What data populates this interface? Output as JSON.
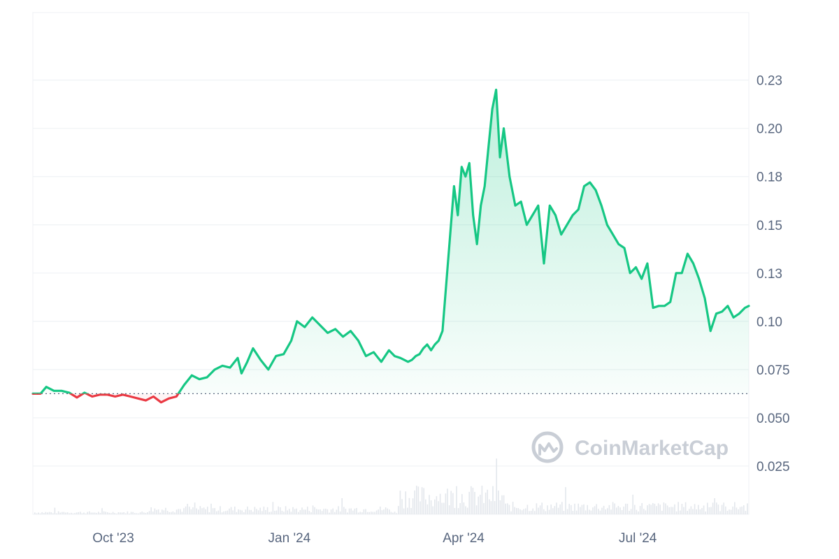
{
  "watermark": {
    "text": "CoinMarketCap",
    "icon": "coinmarketcap-logo-icon",
    "color": "#c9ced6"
  },
  "colors": {
    "up": "#16c784",
    "down": "#ea3943",
    "grid": "#eff2f5",
    "axis_text": "#58667e",
    "baseline": "#58667e",
    "volume": "#e3e7ec"
  },
  "chart_data": {
    "type": "line",
    "title": "",
    "xlabel": "",
    "ylabel": "",
    "xlim": [
      "2023-08-20",
      "2024-08-28"
    ],
    "ylim": [
      0,
      0.26
    ],
    "baseline": 0.0625,
    "y_ticks": [
      {
        "value": 0.025,
        "label": "0.025"
      },
      {
        "value": 0.05,
        "label": "0.050"
      },
      {
        "value": 0.075,
        "label": "0.075"
      },
      {
        "value": 0.1,
        "label": "0.10"
      },
      {
        "value": 0.125,
        "label": "0.13"
      },
      {
        "value": 0.15,
        "label": "0.15"
      },
      {
        "value": 0.175,
        "label": "0.18"
      },
      {
        "value": 0.2,
        "label": "0.20"
      },
      {
        "value": 0.225,
        "label": "0.23"
      }
    ],
    "x_ticks": [
      {
        "date": "2023-10-01",
        "label": "Oct '23"
      },
      {
        "date": "2024-01-01",
        "label": "Jan '24"
      },
      {
        "date": "2024-04-01",
        "label": "Apr '24"
      },
      {
        "date": "2024-07-01",
        "label": "Jul '24"
      }
    ],
    "grid": true,
    "legend": "none",
    "series": [
      {
        "x": [
          "2023-08-20",
          "2023-08-24",
          "2023-08-27",
          "2023-08-31",
          "2023-09-04",
          "2023-09-08",
          "2023-09-12",
          "2023-09-16",
          "2023-09-20",
          "2023-09-24",
          "2023-09-28",
          "2023-10-02",
          "2023-10-06",
          "2023-10-10",
          "2023-10-14",
          "2023-10-18",
          "2023-10-22",
          "2023-10-26",
          "2023-10-30",
          "2023-11-03",
          "2023-11-07",
          "2023-11-11",
          "2023-11-15",
          "2023-11-19",
          "2023-11-23",
          "2023-11-27",
          "2023-12-01",
          "2023-12-05",
          "2023-12-07",
          "2023-12-10",
          "2023-12-13",
          "2023-12-17",
          "2023-12-21",
          "2023-12-25",
          "2023-12-29",
          "2024-01-02",
          "2024-01-05",
          "2024-01-09",
          "2024-01-13",
          "2024-01-17",
          "2024-01-21",
          "2024-01-25",
          "2024-01-29",
          "2024-02-02",
          "2024-02-06",
          "2024-02-10",
          "2024-02-14",
          "2024-02-18",
          "2024-02-22",
          "2024-02-25",
          "2024-02-28",
          "2024-03-01",
          "2024-03-03",
          "2024-03-05",
          "2024-03-07",
          "2024-03-09",
          "2024-03-11",
          "2024-03-13",
          "2024-03-15",
          "2024-03-17",
          "2024-03-19",
          "2024-03-21",
          "2024-03-23",
          "2024-03-25",
          "2024-03-27",
          "2024-03-29",
          "2024-03-31",
          "2024-04-02",
          "2024-04-04",
          "2024-04-06",
          "2024-04-08",
          "2024-04-10",
          "2024-04-12",
          "2024-04-14",
          "2024-04-16",
          "2024-04-18",
          "2024-04-20",
          "2024-04-22",
          "2024-04-25",
          "2024-04-28",
          "2024-05-01",
          "2024-05-04",
          "2024-05-07",
          "2024-05-10",
          "2024-05-13",
          "2024-05-16",
          "2024-05-19",
          "2024-05-22",
          "2024-05-25",
          "2024-05-28",
          "2024-05-31",
          "2024-06-03",
          "2024-06-06",
          "2024-06-09",
          "2024-06-12",
          "2024-06-15",
          "2024-06-18",
          "2024-06-21",
          "2024-06-24",
          "2024-06-27",
          "2024-06-30",
          "2024-07-03",
          "2024-07-06",
          "2024-07-09",
          "2024-07-12",
          "2024-07-15",
          "2024-07-18",
          "2024-07-21",
          "2024-07-24",
          "2024-07-27",
          "2024-07-30",
          "2024-08-02",
          "2024-08-05",
          "2024-08-08",
          "2024-08-11",
          "2024-08-14",
          "2024-08-17",
          "2024-08-20",
          "2024-08-23",
          "2024-08-26",
          "2024-08-28"
        ],
        "y": [
          0.0625,
          0.0625,
          0.066,
          0.064,
          0.064,
          0.063,
          0.0605,
          0.063,
          0.061,
          0.062,
          0.062,
          0.061,
          0.062,
          0.061,
          0.06,
          0.059,
          0.061,
          0.058,
          0.06,
          0.061,
          0.067,
          0.072,
          0.07,
          0.071,
          0.075,
          0.077,
          0.076,
          0.081,
          0.073,
          0.079,
          0.086,
          0.08,
          0.075,
          0.082,
          0.083,
          0.09,
          0.1,
          0.097,
          0.102,
          0.098,
          0.094,
          0.096,
          0.092,
          0.095,
          0.09,
          0.082,
          0.084,
          0.079,
          0.085,
          0.082,
          0.081,
          0.08,
          0.079,
          0.08,
          0.082,
          0.083,
          0.086,
          0.088,
          0.085,
          0.088,
          0.09,
          0.095,
          0.12,
          0.145,
          0.17,
          0.155,
          0.18,
          0.175,
          0.182,
          0.155,
          0.14,
          0.16,
          0.17,
          0.19,
          0.21,
          0.22,
          0.185,
          0.2,
          0.175,
          0.16,
          0.162,
          0.15,
          0.155,
          0.16,
          0.13,
          0.16,
          0.155,
          0.145,
          0.15,
          0.155,
          0.158,
          0.17,
          0.172,
          0.168,
          0.16,
          0.15,
          0.145,
          0.14,
          0.138,
          0.125,
          0.128,
          0.122,
          0.13,
          0.107,
          0.108,
          0.108,
          0.11,
          0.125,
          0.125,
          0.135,
          0.13,
          0.122,
          0.112,
          0.095,
          0.104,
          0.105,
          0.108,
          0.102,
          0.104,
          0.107,
          0.108
        ]
      }
    ]
  }
}
